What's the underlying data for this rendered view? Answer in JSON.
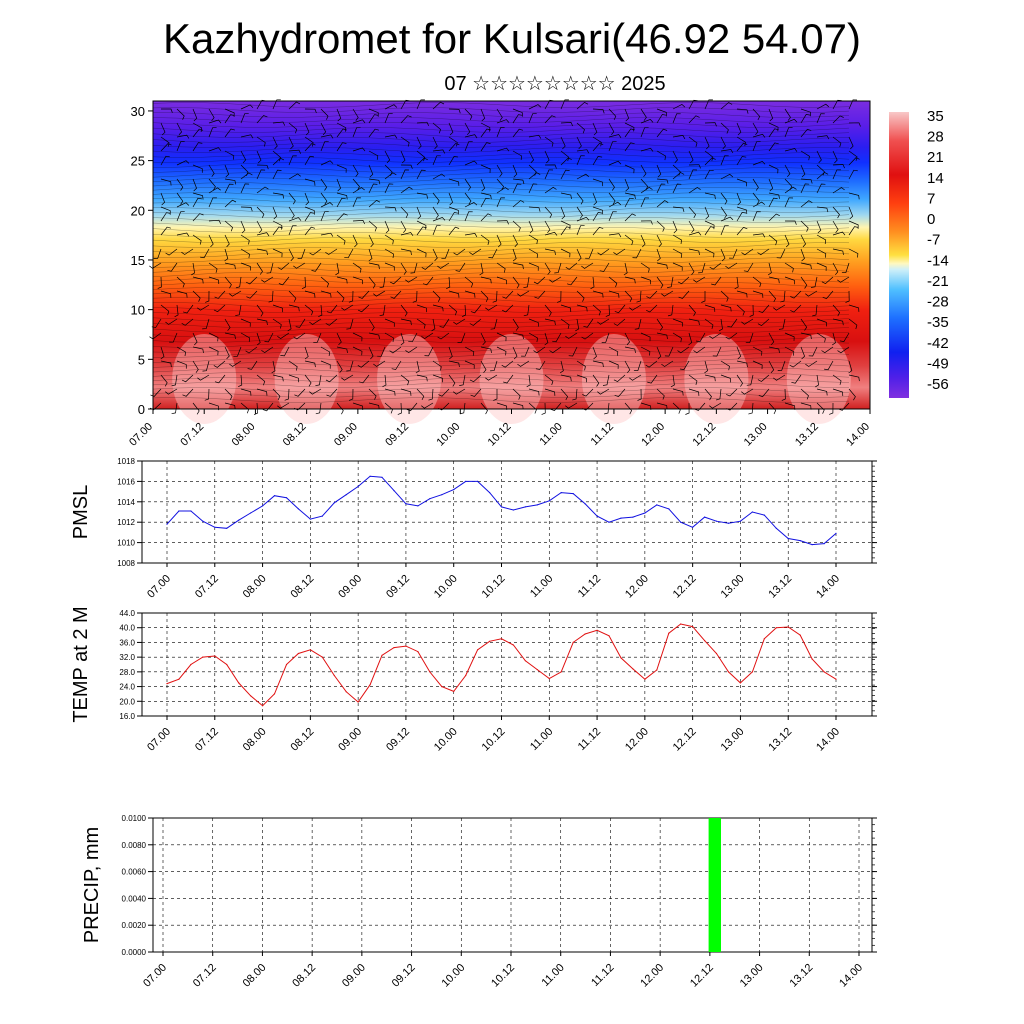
{
  "title": "Kazhydromet for Kulsari(46.92 54.07)",
  "subtitle": "07 ☆☆☆☆☆☆☆☆ 2025",
  "time_labels": [
    "07.00",
    "07.12",
    "08.00",
    "08.12",
    "09.00",
    "09.12",
    "10.00",
    "10.12",
    "11.00",
    "11.12",
    "12.00",
    "12.12",
    "13.00",
    "13.12",
    "14.00"
  ],
  "colors": {
    "pmsl_line": "#1010e0",
    "temp_line": "#e01010",
    "precip_bar": "#00ff00"
  },
  "chart_data": [
    {
      "type": "heatmap",
      "name": "cross-section",
      "y_ticks": [
        "0",
        "5",
        "10",
        "15",
        "20",
        "25",
        "30"
      ],
      "ylim": [
        0,
        31
      ],
      "colorbar_labels": [
        "35",
        "28",
        "21",
        "14",
        "7",
        "0",
        "-7",
        "-14",
        "-21",
        "-28",
        "-35",
        "-42",
        "-49",
        "-56"
      ],
      "colorbar_range": [
        -60,
        38
      ],
      "wind_barbs": true
    },
    {
      "type": "line",
      "name": "pmsl",
      "ylabel": "PMSL",
      "y_ticks": [
        "1018",
        "1016",
        "1014",
        "1012",
        "1010",
        "1008"
      ],
      "ylim": [
        1008,
        1018
      ],
      "x_steps_per_day": 8,
      "values": [
        1011.8,
        1013.1,
        1013.1,
        1012.1,
        1011.5,
        1011.4,
        1012.2,
        1012.9,
        1013.6,
        1014.6,
        1014.4,
        1013.3,
        1012.3,
        1012.6,
        1013.9,
        1014.7,
        1015.5,
        1016.5,
        1016.4,
        1015.1,
        1013.8,
        1013.6,
        1014.3,
        1014.7,
        1015.2,
        1016.0,
        1016.0,
        1014.9,
        1013.5,
        1013.2,
        1013.5,
        1013.7,
        1014.1,
        1014.9,
        1014.8,
        1013.8,
        1012.6,
        1012.0,
        1012.4,
        1012.5,
        1012.9,
        1013.7,
        1013.3,
        1012.0,
        1011.5,
        1012.5,
        1012.1,
        1011.9,
        1012.1,
        1013.0,
        1012.7,
        1011.4,
        1010.4,
        1010.2,
        1009.8,
        1009.9,
        1010.9
      ]
    },
    {
      "type": "line",
      "name": "temp",
      "ylabel": "TEMP at 2 M",
      "y_ticks": [
        "44.0",
        "40.0",
        "36.0",
        "32.0",
        "28.0",
        "24.0",
        "20.0",
        "16.0"
      ],
      "ylim": [
        16,
        44
      ],
      "x_steps_per_day": 8,
      "values": [
        24.8,
        26.0,
        30.0,
        32.0,
        32.3,
        30.0,
        25.0,
        21.5,
        18.8,
        22.0,
        30.0,
        33.0,
        34.0,
        32.0,
        27.0,
        22.6,
        19.8,
        24.5,
        32.5,
        34.6,
        35.0,
        33.5,
        28.0,
        24.0,
        22.7,
        27.0,
        34.0,
        36.3,
        37.0,
        35.3,
        31.0,
        28.6,
        26.2,
        28.0,
        36.0,
        38.3,
        39.3,
        37.8,
        31.8,
        28.8,
        26.0,
        28.5,
        38.5,
        41.0,
        40.3,
        36.5,
        33.0,
        28.0,
        25.0,
        28.0,
        37.0,
        40.0,
        40.2,
        38.0,
        31.5,
        28.0,
        26.0
      ]
    },
    {
      "type": "bar",
      "name": "precip",
      "ylabel": "PRECIP, mm",
      "y_ticks": [
        "0.0100",
        "0.0080",
        "0.0060",
        "0.0040",
        "0.0020",
        "0.0000"
      ],
      "ylim": [
        0,
        0.01
      ],
      "bars": [
        {
          "time": 5.55,
          "width": 0.125,
          "value": 0.01
        }
      ]
    }
  ]
}
